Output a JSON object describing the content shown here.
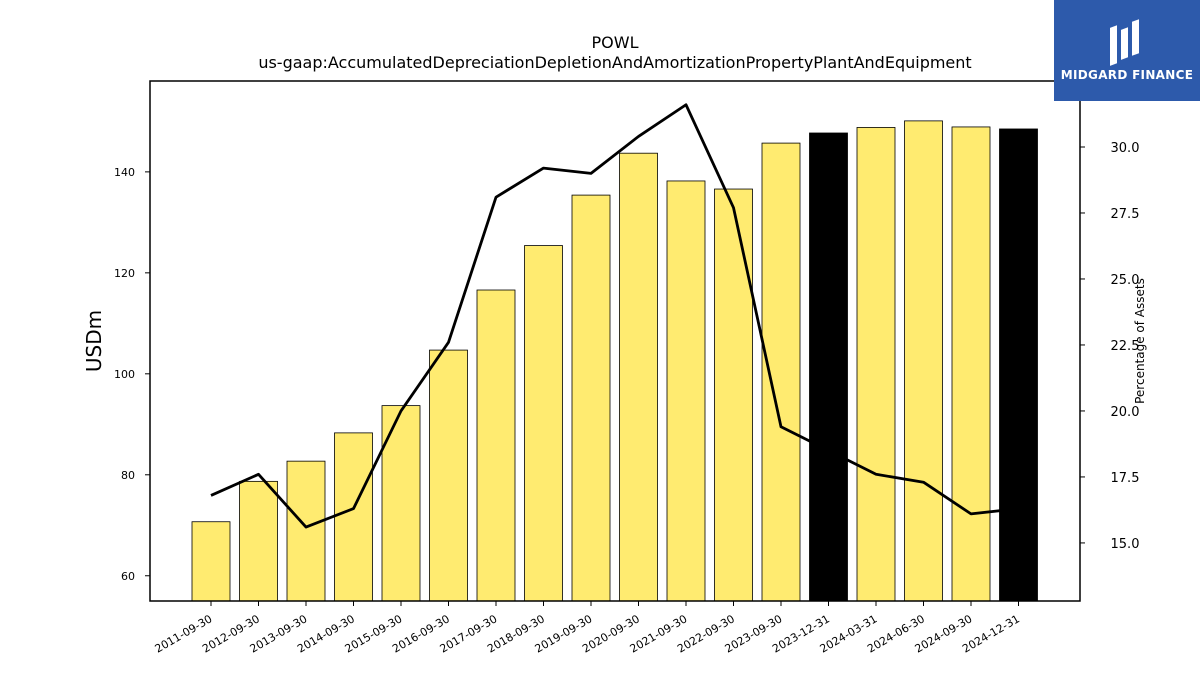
{
  "chart_data": {
    "type": "bar",
    "title": "POWL",
    "subtitle": "us-gaap:AccumulatedDepreciationDepletionAndAmortizationPropertyPlantAndEquipment",
    "ylabel": "USDm",
    "y2label": "Percentage of Assets",
    "categories": [
      "2011-09-30",
      "2012-09-30",
      "2013-09-30",
      "2014-09-30",
      "2015-09-30",
      "2016-09-30",
      "2017-09-30",
      "2018-09-30",
      "2019-09-30",
      "2020-09-30",
      "2021-09-30",
      "2022-09-30",
      "2023-09-30",
      "2023-12-31",
      "2024-03-31",
      "2024-06-30",
      "2024-09-30",
      "2024-12-31"
    ],
    "series": [
      {
        "values": [
          70.7,
          78.7,
          82.7,
          88.3,
          93.7,
          104.7,
          116.6,
          125.4,
          135.4,
          143.7,
          138.2,
          136.6,
          145.7,
          147.7,
          148.8,
          150.1,
          148.9,
          148.5
        ],
        "bar_colors": [
          "#ffeb70",
          "#ffeb70",
          "#ffeb70",
          "#ffeb70",
          "#ffeb70",
          "#ffeb70",
          "#ffeb70",
          "#ffeb70",
          "#ffeb70",
          "#ffeb70",
          "#ffeb70",
          "#ffeb70",
          "#ffeb70",
          "#000000",
          "#ffeb70",
          "#ffeb70",
          "#ffeb70",
          "#000000"
        ],
        "axis": "left"
      },
      {
        "values": [
          16.8,
          17.6,
          15.6,
          16.3,
          20.0,
          22.6,
          28.1,
          29.2,
          29.0,
          30.4,
          31.6,
          27.7,
          19.4,
          18.5,
          17.6,
          17.3,
          16.1,
          16.3
        ],
        "color": "#000000",
        "type": "line",
        "axis": "right"
      }
    ],
    "ylim": [
      55,
      158
    ],
    "y2lim": [
      12.8,
      32.5
    ],
    "yticks": [
      60,
      80,
      100,
      120,
      140
    ],
    "y2ticks": [
      "15.0",
      "17.5",
      "20.0",
      "22.5",
      "25.0",
      "27.5",
      "30.0"
    ],
    "grid": false
  },
  "logo": {
    "text": "MIDGARD FINANCE",
    "background": "#2d5aab"
  }
}
